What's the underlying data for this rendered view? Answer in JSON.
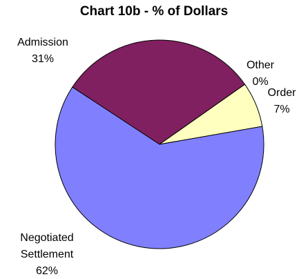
{
  "chart_data": {
    "type": "pie",
    "title": "Chart 10b  -  % of Dollars",
    "categories": [
      "Admission",
      "Other",
      "Order",
      "Negotiated Settlement"
    ],
    "values": [
      31,
      0,
      7,
      62
    ],
    "value_labels": [
      "31%",
      "0%",
      "7%",
      "62%"
    ],
    "colors": [
      "#802060",
      "#a0e0e0",
      "#ffffc0",
      "#8080ff"
    ]
  }
}
